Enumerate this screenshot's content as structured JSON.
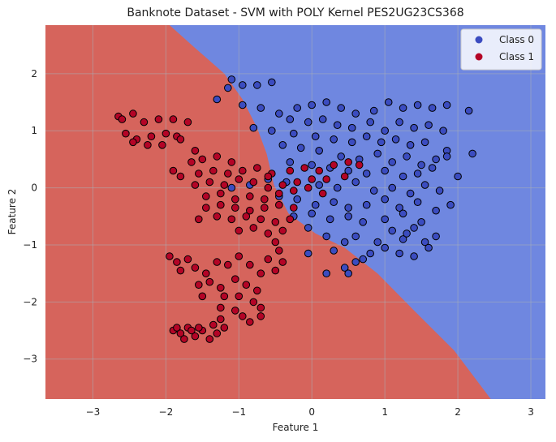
{
  "chart_data": {
    "type": "scatter",
    "title": "Banknote Dataset - SVM with POLY Kernel PES2UG23CS368",
    "xlabel": "Feature 1",
    "ylabel": "Feature 2",
    "xlim": [
      -3.65,
      3.2
    ],
    "ylim": [
      -3.7,
      2.85
    ],
    "xticks": [
      -3,
      -2,
      -1,
      0,
      1,
      2,
      3
    ],
    "yticks": [
      -3,
      -2,
      -1,
      0,
      1,
      2
    ],
    "grid": true,
    "legend_position": "top-right",
    "colors": {
      "class0_region": "#6f87e0",
      "class1_region": "#d6645c",
      "class0_point": "#3b4cc0",
      "class1_point": "#b40426",
      "marker_edge": "#000000",
      "grid": "#a9aeb6"
    },
    "decision_boundary": [
      [
        -1.95,
        2.85
      ],
      [
        -1.6,
        2.45
      ],
      [
        -1.2,
        2.0
      ],
      [
        -0.95,
        1.55
      ],
      [
        -0.75,
        1.05
      ],
      [
        -0.62,
        0.6
      ],
      [
        -0.52,
        0.05
      ],
      [
        -0.32,
        -0.45
      ],
      [
        0.05,
        -0.8
      ],
      [
        0.45,
        -1.05
      ],
      [
        0.9,
        -1.5
      ],
      [
        1.4,
        -2.15
      ],
      [
        1.95,
        -2.85
      ],
      [
        2.45,
        -3.7
      ]
    ],
    "series": [
      {
        "name": "Class 0",
        "points": [
          [
            -1.1,
            1.9
          ],
          [
            -1.15,
            1.75
          ],
          [
            -0.95,
            1.8
          ],
          [
            -0.75,
            1.8
          ],
          [
            -0.55,
            1.85
          ],
          [
            -1.3,
            1.55
          ],
          [
            -0.95,
            1.45
          ],
          [
            -0.7,
            1.4
          ],
          [
            -0.45,
            1.3
          ],
          [
            -0.2,
            1.4
          ],
          [
            0.0,
            1.45
          ],
          [
            0.2,
            1.5
          ],
          [
            0.4,
            1.4
          ],
          [
            0.6,
            1.3
          ],
          [
            0.85,
            1.35
          ],
          [
            1.05,
            1.5
          ],
          [
            1.25,
            1.4
          ],
          [
            1.45,
            1.45
          ],
          [
            1.65,
            1.4
          ],
          [
            1.85,
            1.45
          ],
          [
            2.15,
            1.35
          ],
          [
            -0.3,
            1.2
          ],
          [
            -0.05,
            1.15
          ],
          [
            0.15,
            1.2
          ],
          [
            0.35,
            1.1
          ],
          [
            0.55,
            1.05
          ],
          [
            0.8,
            1.15
          ],
          [
            1.0,
            1.0
          ],
          [
            1.2,
            1.15
          ],
          [
            1.4,
            1.05
          ],
          [
            1.6,
            1.1
          ],
          [
            1.8,
            1.0
          ],
          [
            -0.8,
            1.05
          ],
          [
            -0.55,
            1.0
          ],
          [
            -0.25,
            0.95
          ],
          [
            0.05,
            0.9
          ],
          [
            0.3,
            0.85
          ],
          [
            0.55,
            0.8
          ],
          [
            0.75,
            0.9
          ],
          [
            0.95,
            0.8
          ],
          [
            1.15,
            0.85
          ],
          [
            1.35,
            0.75
          ],
          [
            1.55,
            0.8
          ],
          [
            1.85,
            0.65
          ],
          [
            2.2,
            0.6
          ],
          [
            -0.4,
            0.75
          ],
          [
            -0.15,
            0.7
          ],
          [
            0.1,
            0.65
          ],
          [
            0.4,
            0.55
          ],
          [
            0.65,
            0.5
          ],
          [
            0.9,
            0.6
          ],
          [
            1.1,
            0.45
          ],
          [
            1.3,
            0.55
          ],
          [
            1.5,
            0.4
          ],
          [
            1.7,
            0.5
          ],
          [
            1.85,
            0.55
          ],
          [
            -0.3,
            0.45
          ],
          [
            0.0,
            0.4
          ],
          [
            0.25,
            0.35
          ],
          [
            0.5,
            0.3
          ],
          [
            0.75,
            0.25
          ],
          [
            1.0,
            0.3
          ],
          [
            1.25,
            0.2
          ],
          [
            1.45,
            0.25
          ],
          [
            1.65,
            0.35
          ],
          [
            2.0,
            0.2
          ],
          [
            -0.6,
            0.15
          ],
          [
            -0.35,
            0.1
          ],
          [
            0.1,
            0.05
          ],
          [
            0.35,
            0.0
          ],
          [
            0.6,
            0.1
          ],
          [
            0.85,
            -0.05
          ],
          [
            1.1,
            0.0
          ],
          [
            1.35,
            -0.1
          ],
          [
            1.55,
            0.05
          ],
          [
            1.75,
            -0.05
          ],
          [
            -0.45,
            -0.15
          ],
          [
            -0.2,
            -0.2
          ],
          [
            0.05,
            -0.3
          ],
          [
            0.3,
            -0.25
          ],
          [
            0.5,
            -0.35
          ],
          [
            0.75,
            -0.3
          ],
          [
            1.0,
            -0.2
          ],
          [
            1.2,
            -0.35
          ],
          [
            1.45,
            -0.25
          ],
          [
            1.7,
            -0.4
          ],
          [
            1.9,
            -0.3
          ],
          [
            -0.25,
            -0.5
          ],
          [
            0.0,
            -0.45
          ],
          [
            0.25,
            -0.55
          ],
          [
            0.5,
            -0.5
          ],
          [
            0.7,
            -0.6
          ],
          [
            1.0,
            -0.55
          ],
          [
            1.25,
            -0.45
          ],
          [
            1.5,
            -0.6
          ],
          [
            -1.1,
            0.0
          ],
          [
            -0.85,
            0.05
          ],
          [
            -0.05,
            -0.7
          ],
          [
            0.2,
            -0.85
          ],
          [
            0.45,
            -0.95
          ],
          [
            0.6,
            -0.85
          ],
          [
            0.9,
            -0.95
          ],
          [
            1.1,
            -0.75
          ],
          [
            1.25,
            -0.9
          ],
          [
            1.4,
            -0.7
          ],
          [
            1.55,
            -0.95
          ],
          [
            1.7,
            -0.85
          ],
          [
            0.8,
            -1.15
          ],
          [
            1.0,
            -1.05
          ],
          [
            1.2,
            -1.15
          ],
          [
            1.4,
            -1.2
          ],
          [
            1.6,
            -1.05
          ],
          [
            -0.05,
            -1.15
          ],
          [
            0.2,
            -1.5
          ],
          [
            0.45,
            -1.4
          ],
          [
            0.6,
            -1.3
          ],
          [
            0.5,
            -1.5
          ],
          [
            0.7,
            -1.25
          ],
          [
            0.3,
            -1.1
          ],
          [
            1.3,
            -0.8
          ]
        ]
      },
      {
        "name": "Class 1",
        "points": [
          [
            -2.65,
            1.25
          ],
          [
            -2.6,
            1.2
          ],
          [
            -2.45,
            1.3
          ],
          [
            -2.3,
            1.15
          ],
          [
            -2.1,
            1.2
          ],
          [
            -1.9,
            1.2
          ],
          [
            -1.7,
            1.15
          ],
          [
            -2.55,
            0.95
          ],
          [
            -2.4,
            0.85
          ],
          [
            -2.2,
            0.9
          ],
          [
            -2.0,
            0.95
          ],
          [
            -1.85,
            0.9
          ],
          [
            -2.45,
            0.8
          ],
          [
            -2.25,
            0.75
          ],
          [
            -2.05,
            0.75
          ],
          [
            -1.8,
            0.85
          ],
          [
            -1.6,
            0.65
          ],
          [
            -1.9,
            0.3
          ],
          [
            -1.8,
            0.2
          ],
          [
            -1.65,
            0.45
          ],
          [
            -1.5,
            0.5
          ],
          [
            -1.3,
            0.55
          ],
          [
            -1.1,
            0.45
          ],
          [
            -1.55,
            0.25
          ],
          [
            -1.35,
            0.3
          ],
          [
            -1.15,
            0.25
          ],
          [
            -0.95,
            0.3
          ],
          [
            -0.75,
            0.35
          ],
          [
            -0.55,
            0.25
          ],
          [
            -0.3,
            0.3
          ],
          [
            -0.1,
            0.35
          ],
          [
            0.1,
            0.3
          ],
          [
            0.3,
            0.4
          ],
          [
            0.5,
            0.45
          ],
          [
            0.65,
            0.4
          ],
          [
            -1.6,
            0.05
          ],
          [
            -1.4,
            0.1
          ],
          [
            -1.2,
            0.05
          ],
          [
            -1.0,
            0.15
          ],
          [
            -0.8,
            0.1
          ],
          [
            -0.6,
            0.0
          ],
          [
            -0.4,
            0.05
          ],
          [
            -0.2,
            0.1
          ],
          [
            0.0,
            0.15
          ],
          [
            0.2,
            0.15
          ],
          [
            0.45,
            0.2
          ],
          [
            -1.45,
            -0.15
          ],
          [
            -1.25,
            -0.1
          ],
          [
            -1.05,
            -0.2
          ],
          [
            -0.85,
            -0.15
          ],
          [
            -0.65,
            -0.2
          ],
          [
            -0.45,
            -0.1
          ],
          [
            -0.25,
            -0.05
          ],
          [
            -0.05,
            0.0
          ],
          [
            0.15,
            -0.1
          ],
          [
            -1.45,
            -0.35
          ],
          [
            -1.25,
            -0.3
          ],
          [
            -1.05,
            -0.35
          ],
          [
            -0.85,
            -0.4
          ],
          [
            -0.65,
            -0.35
          ],
          [
            -0.45,
            -0.3
          ],
          [
            -0.25,
            -0.35
          ],
          [
            -1.55,
            -0.55
          ],
          [
            -1.3,
            -0.5
          ],
          [
            -1.1,
            -0.55
          ],
          [
            -0.9,
            -0.5
          ],
          [
            -0.7,
            -0.55
          ],
          [
            -0.5,
            -0.6
          ],
          [
            -0.3,
            -0.55
          ],
          [
            -1.0,
            -0.75
          ],
          [
            -0.8,
            -0.7
          ],
          [
            -0.6,
            -0.8
          ],
          [
            -0.4,
            -0.75
          ],
          [
            -0.5,
            -0.95
          ],
          [
            -0.45,
            -1.1
          ],
          [
            -0.4,
            -1.3
          ],
          [
            -0.5,
            -1.45
          ],
          [
            -1.95,
            -1.2
          ],
          [
            -1.85,
            -1.3
          ],
          [
            -1.8,
            -1.45
          ],
          [
            -1.7,
            -1.25
          ],
          [
            -1.6,
            -1.4
          ],
          [
            -1.45,
            -1.5
          ],
          [
            -1.3,
            -1.3
          ],
          [
            -1.15,
            -1.35
          ],
          [
            -1.0,
            -1.2
          ],
          [
            -0.85,
            -1.35
          ],
          [
            -0.7,
            -1.5
          ],
          [
            -0.6,
            -1.25
          ],
          [
            -1.55,
            -1.7
          ],
          [
            -1.4,
            -1.65
          ],
          [
            -1.25,
            -1.75
          ],
          [
            -1.05,
            -1.6
          ],
          [
            -0.9,
            -1.7
          ],
          [
            -0.75,
            -1.8
          ],
          [
            -1.5,
            -1.9
          ],
          [
            -1.2,
            -1.9
          ],
          [
            -1.0,
            -1.9
          ],
          [
            -0.8,
            -2.0
          ],
          [
            -0.7,
            -2.1
          ],
          [
            -1.25,
            -2.1
          ],
          [
            -1.05,
            -2.15
          ],
          [
            -1.25,
            -2.3
          ],
          [
            -0.95,
            -2.25
          ],
          [
            -0.85,
            -2.35
          ],
          [
            -0.7,
            -2.25
          ],
          [
            -1.9,
            -2.5
          ],
          [
            -1.8,
            -2.55
          ],
          [
            -1.7,
            -2.45
          ],
          [
            -1.6,
            -2.6
          ],
          [
            -1.5,
            -2.5
          ],
          [
            -1.4,
            -2.65
          ],
          [
            -1.3,
            -2.55
          ],
          [
            -1.2,
            -2.45
          ],
          [
            -1.75,
            -2.65
          ],
          [
            -1.55,
            -2.45
          ],
          [
            -1.35,
            -2.4
          ],
          [
            -1.85,
            -2.45
          ],
          [
            -1.65,
            -2.5
          ],
          [
            -0.6,
            0.2
          ]
        ]
      }
    ]
  }
}
